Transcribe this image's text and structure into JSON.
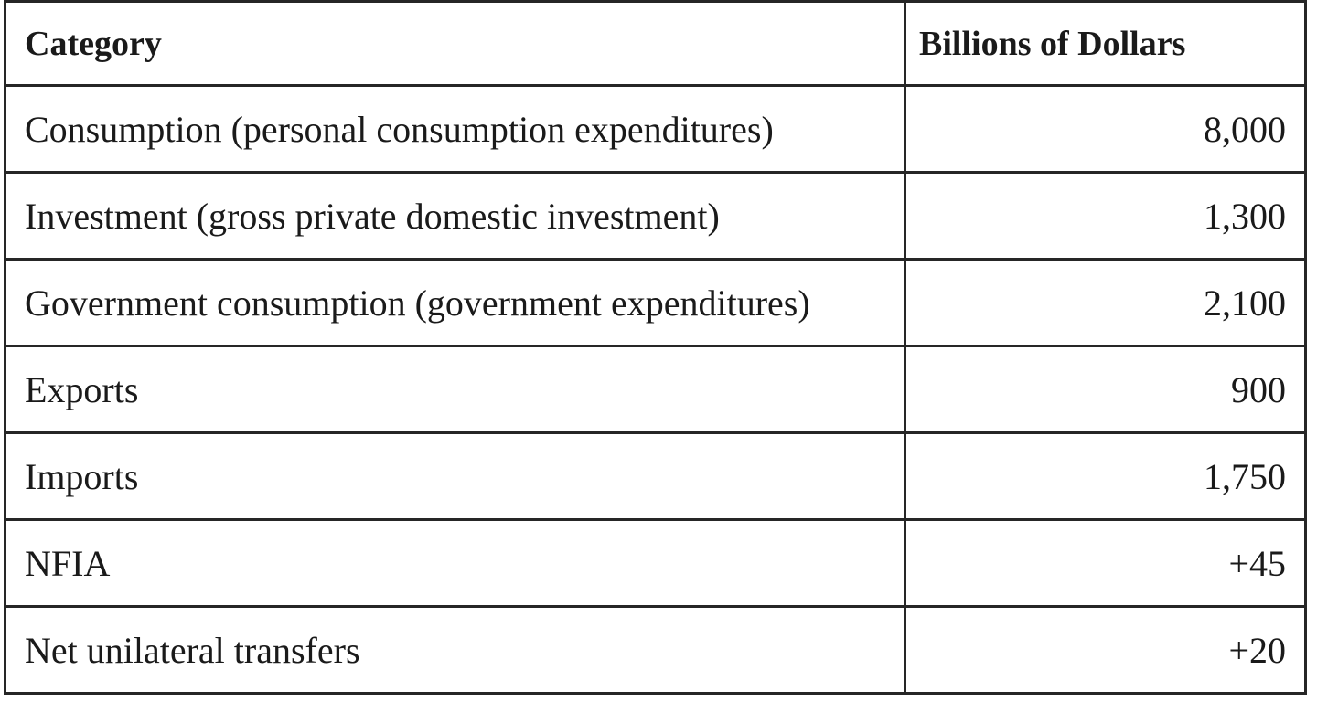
{
  "table": {
    "header": [
      "Category",
      "Billions of Dollars"
    ],
    "rows": [
      [
        "Consumption (personal consumption expenditures)",
        "8,000"
      ],
      [
        "Investment (gross private domestic investment)",
        "1,300"
      ],
      [
        "Government consumption (government expenditures)",
        "2,100"
      ],
      [
        "Exports",
        "900"
      ],
      [
        "Imports",
        "1,750"
      ],
      [
        "NFIA",
        "+45"
      ],
      [
        "Net unilateral transfers",
        "+20"
      ]
    ]
  }
}
